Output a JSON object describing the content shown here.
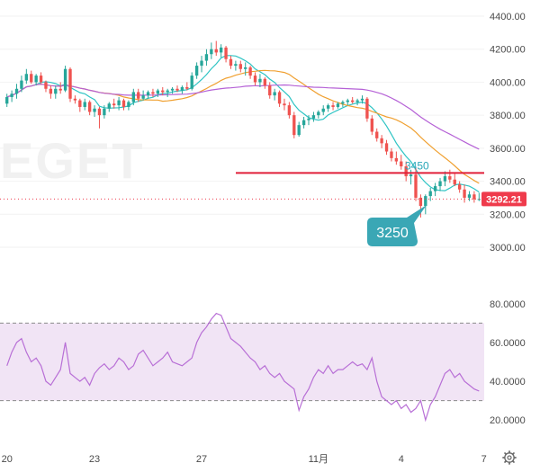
{
  "watermark": "EGET",
  "colors": {
    "up": "#26a69a",
    "down": "#ef5350",
    "ma_fast": "#2ec4c4",
    "ma_mid": "#f0a030",
    "ma_slow": "#b561d6",
    "rsi": "#b86fd6",
    "rsi_band": "#f1e4f5",
    "resistance": "#e0203a",
    "callout_bg": "#3aa7b5",
    "price_tag": "#ef3b4c",
    "grid": "#f2f2f2"
  },
  "annotations": {
    "resistance_label": "3450",
    "support_callout": "3250",
    "last_price": "3292.21"
  },
  "ui": {
    "settings_icon": "gear-icon"
  },
  "chart_data": [
    {
      "type": "candlestick",
      "y_axis_ticks": [
        "4400.00",
        "4200.00",
        "4000.00",
        "3800.00",
        "3600.00",
        "3400.00",
        "3200.00",
        "3000.00"
      ],
      "ylim": [
        3000,
        4400
      ],
      "x_ticks": [
        "20",
        "23",
        "27",
        "11月",
        "4",
        "7"
      ],
      "x_tick_index": [
        0,
        18,
        40,
        64,
        81,
        98
      ],
      "candles": [
        {
          "o": 3870,
          "h": 3930,
          "l": 3850,
          "c": 3910
        },
        {
          "o": 3910,
          "h": 3950,
          "l": 3880,
          "c": 3930
        },
        {
          "o": 3930,
          "h": 3990,
          "l": 3900,
          "c": 3960
        },
        {
          "o": 3960,
          "h": 4040,
          "l": 3940,
          "c": 4010
        },
        {
          "o": 4010,
          "h": 4080,
          "l": 3990,
          "c": 4050
        },
        {
          "o": 4050,
          "h": 4070,
          "l": 3990,
          "c": 4000
        },
        {
          "o": 4000,
          "h": 4050,
          "l": 3980,
          "c": 4040
        },
        {
          "o": 4040,
          "h": 4060,
          "l": 3990,
          "c": 4000
        },
        {
          "o": 4000,
          "h": 4010,
          "l": 3940,
          "c": 3960
        },
        {
          "o": 3960,
          "h": 3980,
          "l": 3900,
          "c": 3930
        },
        {
          "o": 3930,
          "h": 3980,
          "l": 3900,
          "c": 3960
        },
        {
          "o": 3960,
          "h": 4000,
          "l": 3930,
          "c": 3950
        },
        {
          "o": 3950,
          "h": 4100,
          "l": 3940,
          "c": 4080
        },
        {
          "o": 4080,
          "h": 4090,
          "l": 3880,
          "c": 3900
        },
        {
          "o": 3900,
          "h": 3920,
          "l": 3870,
          "c": 3890
        },
        {
          "o": 3890,
          "h": 3900,
          "l": 3820,
          "c": 3850
        },
        {
          "o": 3850,
          "h": 3900,
          "l": 3830,
          "c": 3880
        },
        {
          "o": 3880,
          "h": 3890,
          "l": 3800,
          "c": 3820
        },
        {
          "o": 3820,
          "h": 3860,
          "l": 3790,
          "c": 3840
        },
        {
          "o": 3840,
          "h": 3850,
          "l": 3720,
          "c": 3800
        },
        {
          "o": 3800,
          "h": 3860,
          "l": 3780,
          "c": 3840
        },
        {
          "o": 3840,
          "h": 3880,
          "l": 3820,
          "c": 3870
        },
        {
          "o": 3870,
          "h": 3900,
          "l": 3840,
          "c": 3860
        },
        {
          "o": 3860,
          "h": 3910,
          "l": 3830,
          "c": 3890
        },
        {
          "o": 3890,
          "h": 3900,
          "l": 3830,
          "c": 3850
        },
        {
          "o": 3850,
          "h": 3890,
          "l": 3830,
          "c": 3880
        },
        {
          "o": 3880,
          "h": 3960,
          "l": 3860,
          "c": 3940
        },
        {
          "o": 3940,
          "h": 3960,
          "l": 3880,
          "c": 3900
        },
        {
          "o": 3900,
          "h": 3950,
          "l": 3890,
          "c": 3920
        },
        {
          "o": 3920,
          "h": 3950,
          "l": 3900,
          "c": 3940
        },
        {
          "o": 3940,
          "h": 3960,
          "l": 3910,
          "c": 3930
        },
        {
          "o": 3930,
          "h": 3960,
          "l": 3910,
          "c": 3950
        },
        {
          "o": 3950,
          "h": 3970,
          "l": 3920,
          "c": 3940
        },
        {
          "o": 3940,
          "h": 3960,
          "l": 3910,
          "c": 3950
        },
        {
          "o": 3950,
          "h": 3970,
          "l": 3930,
          "c": 3960
        },
        {
          "o": 3960,
          "h": 3980,
          "l": 3940,
          "c": 3950
        },
        {
          "o": 3950,
          "h": 3980,
          "l": 3930,
          "c": 3970
        },
        {
          "o": 3970,
          "h": 4000,
          "l": 3950,
          "c": 3960
        },
        {
          "o": 3960,
          "h": 4060,
          "l": 3950,
          "c": 4040
        },
        {
          "o": 4040,
          "h": 4120,
          "l": 4020,
          "c": 4100
        },
        {
          "o": 4100,
          "h": 4160,
          "l": 4060,
          "c": 4130
        },
        {
          "o": 4130,
          "h": 4200,
          "l": 4100,
          "c": 4170
        },
        {
          "o": 4170,
          "h": 4240,
          "l": 4140,
          "c": 4200
        },
        {
          "o": 4200,
          "h": 4250,
          "l": 4160,
          "c": 4180
        },
        {
          "o": 4180,
          "h": 4230,
          "l": 4150,
          "c": 4210
        },
        {
          "o": 4210,
          "h": 4220,
          "l": 4120,
          "c": 4140
        },
        {
          "o": 4140,
          "h": 4160,
          "l": 4080,
          "c": 4100
        },
        {
          "o": 4100,
          "h": 4130,
          "l": 4070,
          "c": 4110
        },
        {
          "o": 4110,
          "h": 4130,
          "l": 4060,
          "c": 4080
        },
        {
          "o": 4080,
          "h": 4120,
          "l": 4040,
          "c": 4090
        },
        {
          "o": 4090,
          "h": 4100,
          "l": 4020,
          "c": 4040
        },
        {
          "o": 4040,
          "h": 4060,
          "l": 3980,
          "c": 4000
        },
        {
          "o": 4000,
          "h": 4050,
          "l": 3970,
          "c": 4020
        },
        {
          "o": 4020,
          "h": 4030,
          "l": 3960,
          "c": 3980
        },
        {
          "o": 3980,
          "h": 4000,
          "l": 3900,
          "c": 3920
        },
        {
          "o": 3920,
          "h": 3960,
          "l": 3890,
          "c": 3940
        },
        {
          "o": 3940,
          "h": 3950,
          "l": 3850,
          "c": 3870
        },
        {
          "o": 3870,
          "h": 3900,
          "l": 3830,
          "c": 3860
        },
        {
          "o": 3860,
          "h": 3880,
          "l": 3780,
          "c": 3800
        },
        {
          "o": 3800,
          "h": 3820,
          "l": 3660,
          "c": 3680
        },
        {
          "o": 3680,
          "h": 3760,
          "l": 3670,
          "c": 3740
        },
        {
          "o": 3740,
          "h": 3790,
          "l": 3720,
          "c": 3770
        },
        {
          "o": 3770,
          "h": 3800,
          "l": 3740,
          "c": 3780
        },
        {
          "o": 3780,
          "h": 3820,
          "l": 3760,
          "c": 3800
        },
        {
          "o": 3800,
          "h": 3830,
          "l": 3780,
          "c": 3820
        },
        {
          "o": 3820,
          "h": 3860,
          "l": 3800,
          "c": 3840
        },
        {
          "o": 3840,
          "h": 3870,
          "l": 3820,
          "c": 3860
        },
        {
          "o": 3860,
          "h": 3880,
          "l": 3830,
          "c": 3850
        },
        {
          "o": 3850,
          "h": 3880,
          "l": 3840,
          "c": 3870
        },
        {
          "o": 3870,
          "h": 3890,
          "l": 3850,
          "c": 3880
        },
        {
          "o": 3880,
          "h": 3900,
          "l": 3860,
          "c": 3890
        },
        {
          "o": 3890,
          "h": 3910,
          "l": 3870,
          "c": 3880
        },
        {
          "o": 3880,
          "h": 3900,
          "l": 3860,
          "c": 3890
        },
        {
          "o": 3890,
          "h": 3920,
          "l": 3870,
          "c": 3900
        },
        {
          "o": 3900,
          "h": 3910,
          "l": 3760,
          "c": 3780
        },
        {
          "o": 3780,
          "h": 3800,
          "l": 3680,
          "c": 3700
        },
        {
          "o": 3700,
          "h": 3720,
          "l": 3640,
          "c": 3660
        },
        {
          "o": 3660,
          "h": 3680,
          "l": 3600,
          "c": 3630
        },
        {
          "o": 3630,
          "h": 3650,
          "l": 3560,
          "c": 3580
        },
        {
          "o": 3580,
          "h": 3600,
          "l": 3520,
          "c": 3540
        },
        {
          "o": 3540,
          "h": 3580,
          "l": 3500,
          "c": 3520
        },
        {
          "o": 3520,
          "h": 3560,
          "l": 3470,
          "c": 3490
        },
        {
          "o": 3490,
          "h": 3520,
          "l": 3400,
          "c": 3430
        },
        {
          "o": 3430,
          "h": 3470,
          "l": 3380,
          "c": 3440
        },
        {
          "o": 3440,
          "h": 3480,
          "l": 3280,
          "c": 3300
        },
        {
          "o": 3300,
          "h": 3320,
          "l": 3180,
          "c": 3250
        },
        {
          "o": 3250,
          "h": 3320,
          "l": 3200,
          "c": 3310
        },
        {
          "o": 3310,
          "h": 3360,
          "l": 3280,
          "c": 3340
        },
        {
          "o": 3340,
          "h": 3390,
          "l": 3310,
          "c": 3370
        },
        {
          "o": 3370,
          "h": 3420,
          "l": 3340,
          "c": 3400
        },
        {
          "o": 3400,
          "h": 3460,
          "l": 3370,
          "c": 3430
        },
        {
          "o": 3430,
          "h": 3470,
          "l": 3390,
          "c": 3410
        },
        {
          "o": 3410,
          "h": 3450,
          "l": 3370,
          "c": 3380
        },
        {
          "o": 3380,
          "h": 3400,
          "l": 3330,
          "c": 3350
        },
        {
          "o": 3350,
          "h": 3380,
          "l": 3270,
          "c": 3300
        },
        {
          "o": 3300,
          "h": 3340,
          "l": 3280,
          "c": 3320
        },
        {
          "o": 3320,
          "h": 3340,
          "l": 3270,
          "c": 3290
        },
        {
          "o": 3290,
          "h": 3330,
          "l": 3280,
          "c": 3292.21
        }
      ],
      "moving_averages": [
        {
          "color_key": "ma_fast",
          "period": 7
        },
        {
          "color_key": "ma_mid",
          "period": 20
        },
        {
          "color_key": "ma_slow",
          "period": 40
        }
      ],
      "resistance_level": 3450,
      "last_value": 3292.21
    },
    {
      "type": "line",
      "y_axis_ticks": [
        "80.0000",
        "60.0000",
        "40.0000",
        "20.0000"
      ],
      "ylim": [
        15,
        85
      ],
      "band": [
        30,
        70
      ],
      "values": [
        48,
        55,
        60,
        62,
        55,
        50,
        52,
        48,
        40,
        38,
        42,
        46,
        60,
        44,
        42,
        40,
        42,
        38,
        44,
        47,
        49,
        46,
        48,
        52,
        50,
        46,
        48,
        54,
        56,
        52,
        48,
        50,
        52,
        55,
        50,
        49,
        48,
        50,
        52,
        60,
        65,
        68,
        72,
        75,
        74,
        68,
        62,
        60,
        58,
        55,
        52,
        50,
        46,
        48,
        44,
        42,
        44,
        40,
        38,
        36,
        25,
        32,
        36,
        42,
        46,
        44,
        48,
        44,
        46,
        46,
        48,
        50,
        48,
        49,
        46,
        52,
        40,
        32,
        30,
        28,
        30,
        26,
        28,
        24,
        26,
        30,
        20,
        28,
        32,
        38,
        44,
        46,
        42,
        44,
        40,
        38,
        36,
        35
      ]
    }
  ]
}
